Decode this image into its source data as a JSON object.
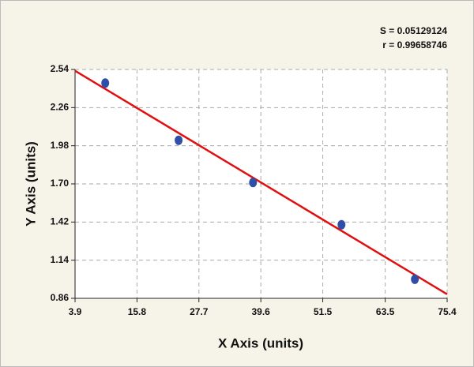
{
  "chart_data": {
    "type": "scatter",
    "annotations": [
      "S = 0.05129124",
      "r = 0.99658746"
    ],
    "x_label": "X Axis (units)",
    "y_label": "Y Axis (units)",
    "x": [
      9.7,
      23.8,
      38.1,
      55.1,
      69.2
    ],
    "values": [
      2.44,
      2.02,
      1.71,
      1.4,
      1.0
    ],
    "color": "#2f4ea8",
    "fit_line": {
      "color": "#e01010",
      "x": [
        3.9,
        75.4
      ],
      "values": [
        2.53,
        0.89
      ]
    },
    "xlim": [
      3.9,
      75.4
    ],
    "xticks": [
      3.9,
      15.8,
      27.7,
      39.6,
      51.5,
      63.5,
      75.4
    ],
    "ylim": [
      0.86,
      2.54
    ],
    "yticks": [
      0.86,
      1.14,
      1.42,
      {
        "value": 1.7,
        "label": "1.70"
      },
      1.98,
      2.26,
      2.54
    ],
    "grid": true
  }
}
